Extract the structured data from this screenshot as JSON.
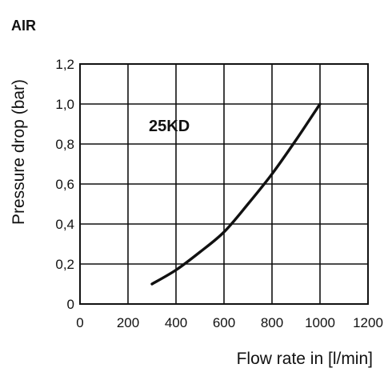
{
  "header": {
    "medium": "AIR"
  },
  "chart_data": {
    "type": "line",
    "title": "",
    "xlabel": "Flow rate in [l/min]",
    "ylabel": "Pressure drop (bar)",
    "xlim": [
      0,
      1200
    ],
    "ylim": [
      0,
      1.2
    ],
    "x_ticks": [
      "0",
      "200",
      "400",
      "600",
      "800",
      "1000",
      "1200"
    ],
    "y_ticks": [
      "0",
      "0,2",
      "0,4",
      "0,6",
      "0,8",
      "1,0",
      "1,2"
    ],
    "grid": true,
    "series": [
      {
        "name": "25KD",
        "color": "#111111",
        "x": [
          300,
          400,
          500,
          600,
          700,
          800,
          900,
          1000
        ],
        "y": [
          0.1,
          0.17,
          0.26,
          0.36,
          0.5,
          0.65,
          0.82,
          1.0
        ]
      }
    ]
  }
}
